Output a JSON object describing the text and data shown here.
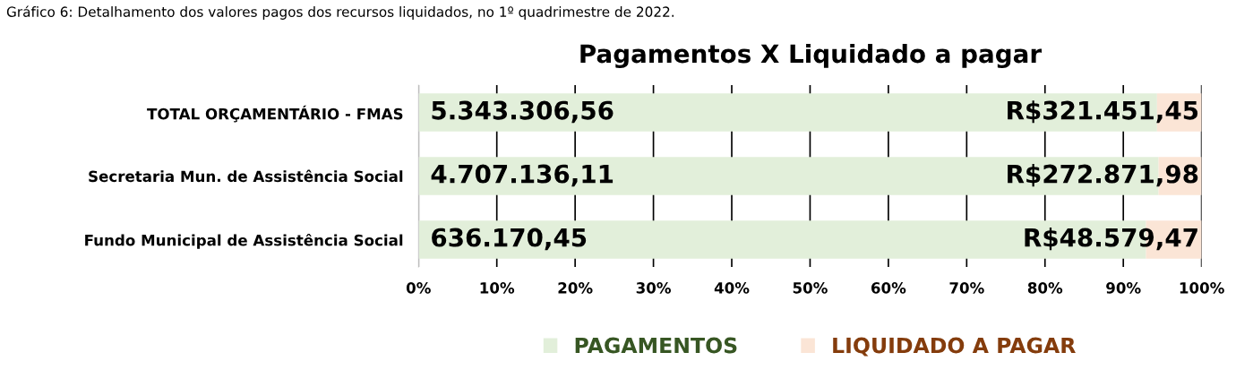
{
  "chart_data": {
    "type": "bar",
    "orientation": "horizontal",
    "stacked": true,
    "title": "Pagamentos X Liquidado a pagar",
    "annotations": [
      "Gráfico 6: Detalhamento dos valores pagos dos recursos liquidados, no 1º quadrimestre de 2022.",
      "5.343.306,56",
      "4.707.136,11",
      "636.170,45",
      "R$321.451,45",
      "R$272.871,98",
      "R$48.579,47"
    ],
    "categories": [
      "TOTAL ORÇAMENTÁRIO - FMAS",
      "Secretaria Mun. de Assistência Social",
      "Fundo Municipal de Assistência Social"
    ],
    "series": [
      {
        "name": "PAGAMENTOS",
        "color": "#e2efda",
        "values": [
          94.3,
          94.5,
          92.9
        ]
      },
      {
        "name": "LIQUIDADO A PAGAR",
        "color": "#fbe5d6",
        "values": [
          5.7,
          5.5,
          7.1
        ]
      }
    ],
    "xlim": [
      0,
      100
    ],
    "xticks": [
      {
        "value": 0,
        "label": "0%"
      },
      {
        "value": 10,
        "label": "10%"
      },
      {
        "value": 20,
        "label": "20%"
      },
      {
        "value": 30,
        "label": "30%"
      },
      {
        "value": 40,
        "label": "40%"
      },
      {
        "value": 50,
        "label": "50%"
      },
      {
        "value": 60,
        "label": "60%"
      },
      {
        "value": 70,
        "label": "70%"
      },
      {
        "value": 80,
        "label": "80%"
      },
      {
        "value": 90,
        "label": "90%"
      },
      {
        "value": 100,
        "label": "100%"
      }
    ],
    "grid": "x",
    "legend": "bottom"
  }
}
